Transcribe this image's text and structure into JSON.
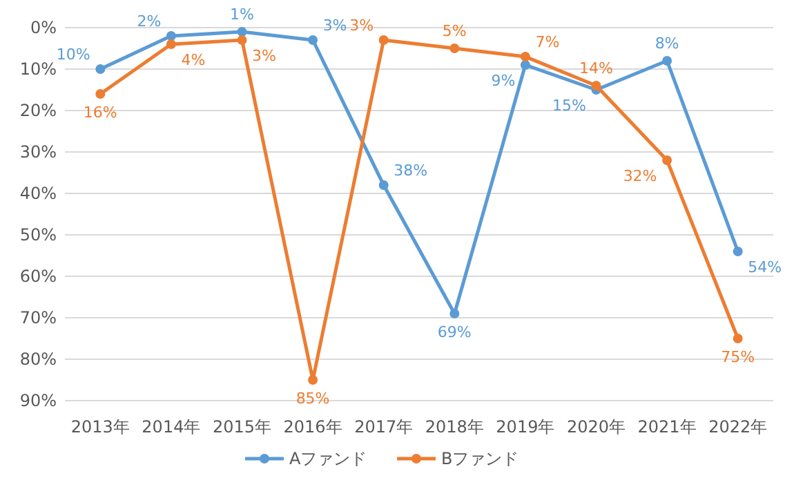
{
  "chart_data": {
    "type": "line",
    "categories": [
      "2013年",
      "2014年",
      "2015年",
      "2016年",
      "2017年",
      "2018年",
      "2019年",
      "2020年",
      "2021年",
      "2022年"
    ],
    "series": [
      {
        "name": "Aファンド",
        "color": "#5b9bd5",
        "values": [
          10,
          2,
          1,
          3,
          38,
          69,
          9,
          15,
          8,
          54
        ],
        "value_labels": [
          "10%",
          "2%",
          "1%",
          "3%",
          "38%",
          "69%",
          "9%",
          "15%",
          "8%",
          "54%"
        ]
      },
      {
        "name": "Bファンド",
        "color": "#ed7d31",
        "values": [
          16,
          4,
          3,
          85,
          3,
          5,
          7,
          14,
          32,
          75
        ],
        "value_labels": [
          "16%",
          "4%",
          "3%",
          "85%",
          "3%",
          "5%",
          "7%",
          "14%",
          "32%",
          "75%"
        ]
      }
    ],
    "ylim": [
      90,
      0
    ],
    "yticks": [
      {
        "value": 0,
        "label": "0%"
      },
      {
        "value": 10,
        "label": "10%"
      },
      {
        "value": 20,
        "label": "20%"
      },
      {
        "value": 30,
        "label": "30%"
      },
      {
        "value": 40,
        "label": "40%"
      },
      {
        "value": 50,
        "label": "50%"
      },
      {
        "value": 60,
        "label": "60%"
      },
      {
        "value": 70,
        "label": "70%"
      },
      {
        "value": 80,
        "label": "80%"
      },
      {
        "value": 90,
        "label": "90%"
      }
    ],
    "grid": "y",
    "legend": "bottom",
    "marker": "circle",
    "line_style": "solid"
  }
}
